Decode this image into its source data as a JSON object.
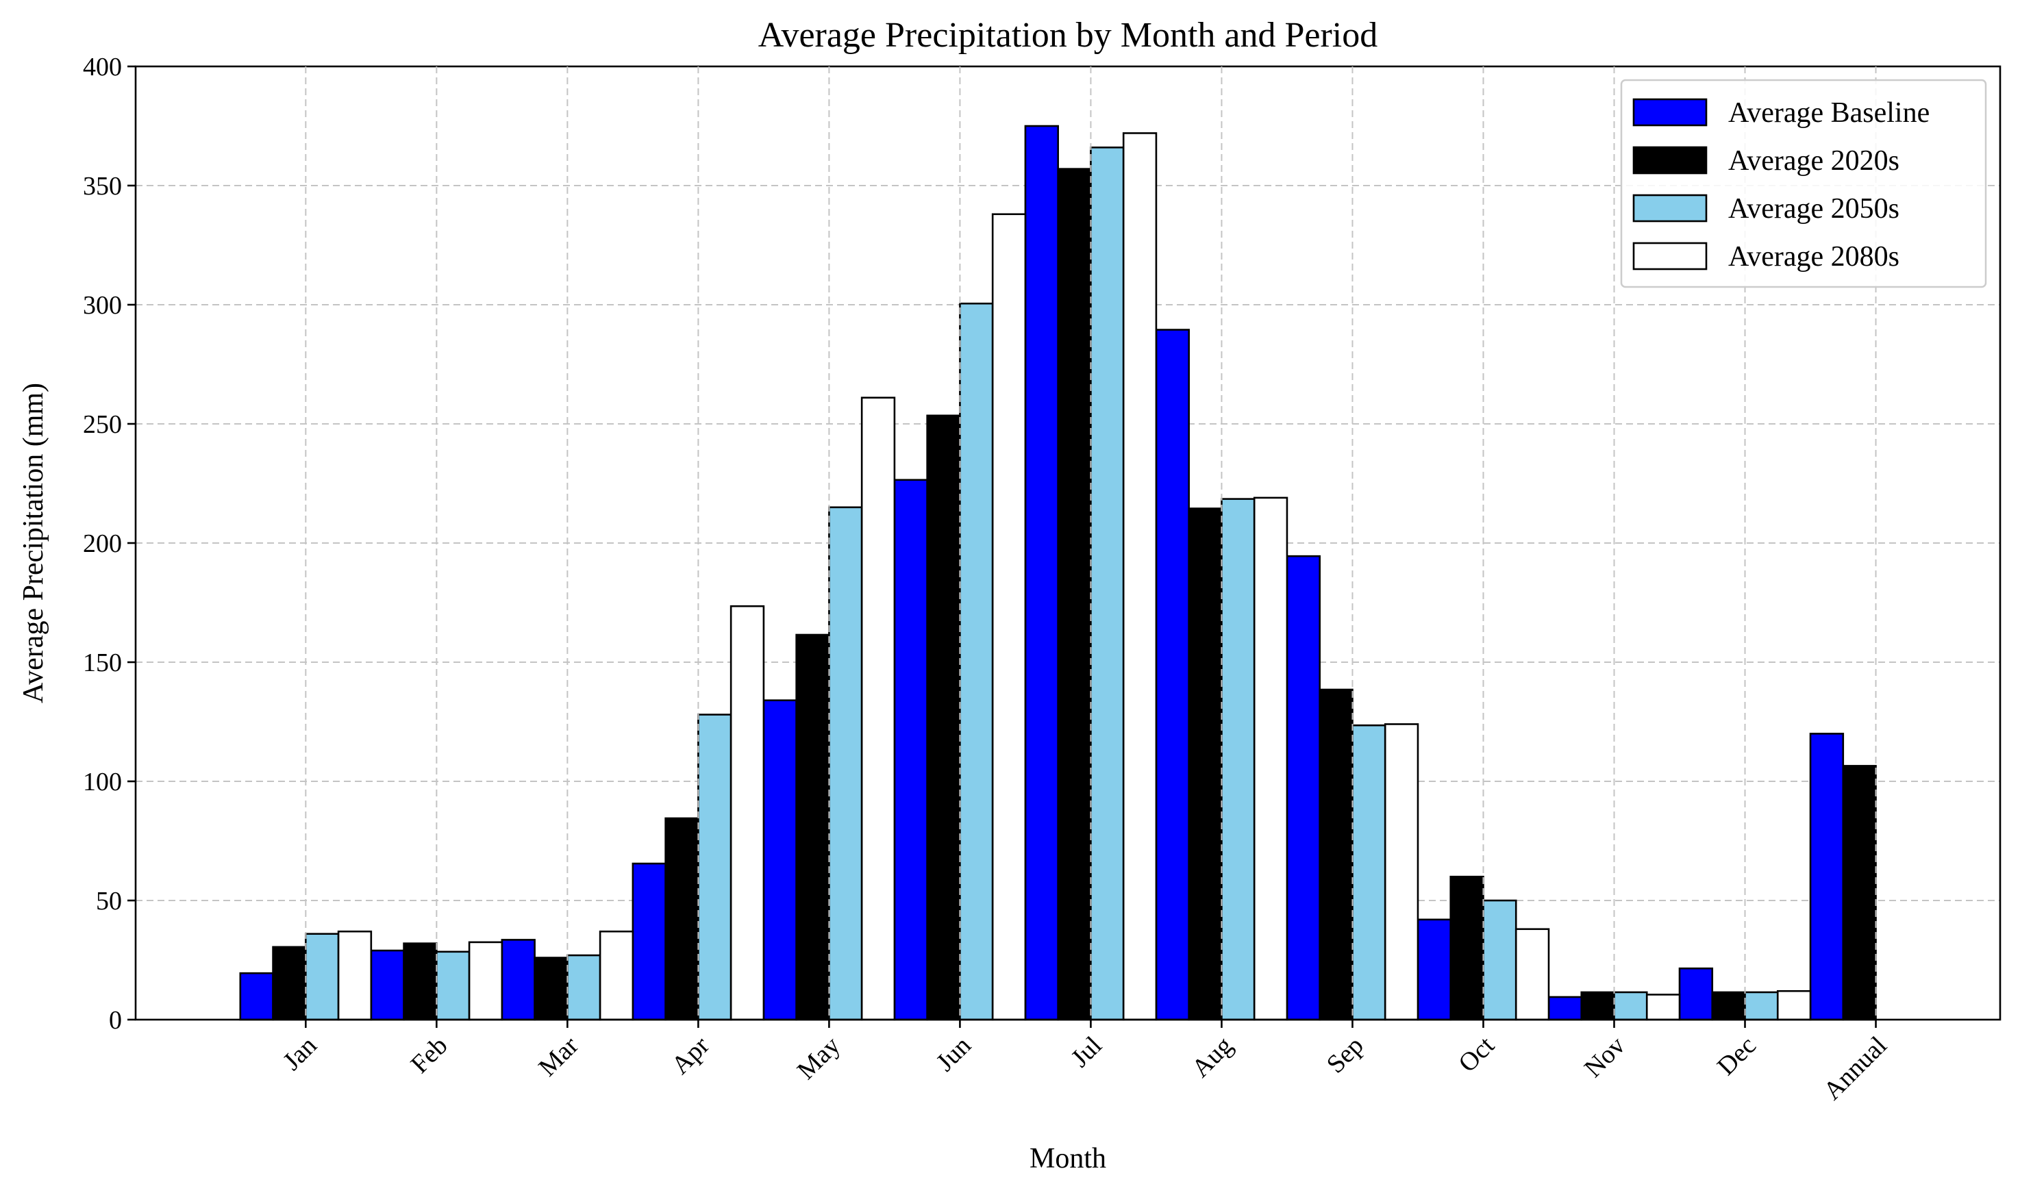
{
  "chart_data": {
    "type": "bar",
    "title": "Average Precipitation by Month and Period",
    "xlabel": "Month",
    "ylabel": "Average Precipitation (mm)",
    "ylim": [
      0,
      400
    ],
    "yticks": [
      0,
      50,
      100,
      150,
      200,
      250,
      300,
      350,
      400
    ],
    "grid": true,
    "legend_position": "top-right",
    "categories": [
      "Jan",
      "Feb",
      "Mar",
      "Apr",
      "May",
      "Jun",
      "Jul",
      "Aug",
      "Sep",
      "Oct",
      "Nov",
      "Dec",
      "Annual"
    ],
    "series": [
      {
        "name": "Average Baseline",
        "color": "#0000ff",
        "values": [
          19.5,
          29,
          33.5,
          65.5,
          134,
          226.5,
          375,
          289.5,
          194.5,
          42,
          9.5,
          21.5,
          120
        ]
      },
      {
        "name": "Average 2020s",
        "color": "#000000",
        "values": [
          30.5,
          32,
          26,
          84.5,
          161.5,
          253.5,
          357,
          214.5,
          138.5,
          60,
          11.5,
          11.5,
          106.5
        ]
      },
      {
        "name": "Average 2050s",
        "color": "#87ceeb",
        "values": [
          36,
          28.5,
          27,
          128,
          215,
          300.5,
          366,
          218.5,
          123.5,
          50,
          11.5,
          11.5,
          0
        ]
      },
      {
        "name": "Average 2080s",
        "color": "#ffffff",
        "values": [
          37,
          32.5,
          37,
          173.5,
          261,
          338,
          372,
          219,
          124,
          38,
          10.5,
          12,
          0
        ]
      }
    ]
  }
}
